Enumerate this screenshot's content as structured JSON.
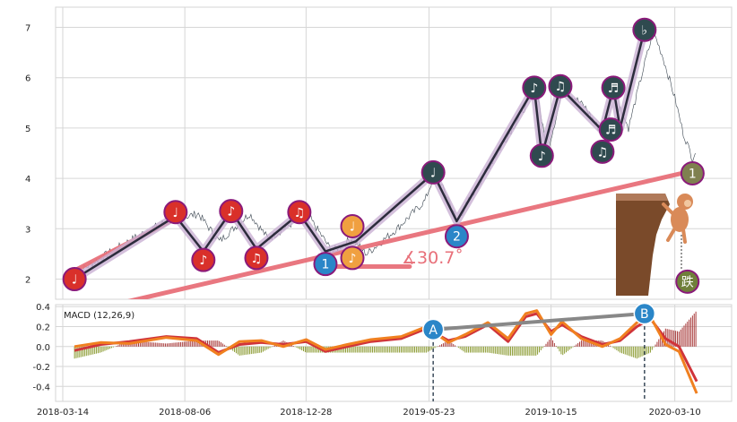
{
  "chart_data": [
    {
      "type": "line",
      "panel": "price",
      "ylim": [
        1.6,
        7.4
      ],
      "y_ticks": [
        "2",
        "3",
        "4",
        "5",
        "6",
        "7"
      ],
      "grid": true,
      "x_range": [
        "2018-03-14",
        "2020-04-06"
      ],
      "price_series": [
        {
          "x": "2018-03-28",
          "y": 2.1
        },
        {
          "x": "2018-05-01",
          "y": 2.45
        },
        {
          "x": "2018-06-05",
          "y": 2.8
        },
        {
          "x": "2018-07-15",
          "y": 3.15
        },
        {
          "x": "2018-08-22",
          "y": 3.3
        },
        {
          "x": "2018-09-16",
          "y": 2.75
        },
        {
          "x": "2018-10-22",
          "y": 3.3
        },
        {
          "x": "2018-11-13",
          "y": 2.8
        },
        {
          "x": "2018-12-29",
          "y": 3.3
        },
        {
          "x": "2019-01-28",
          "y": 2.55
        },
        {
          "x": "2019-02-20",
          "y": 2.8
        },
        {
          "x": "2019-03-10",
          "y": 2.5
        },
        {
          "x": "2019-04-15",
          "y": 3.0
        },
        {
          "x": "2019-05-18",
          "y": 3.55
        },
        {
          "x": "2019-05-30",
          "y": 4.1
        },
        {
          "x": "2019-06-15",
          "y": 3.6
        },
        {
          "x": "2019-06-25",
          "y": 3.15
        },
        {
          "x": "2019-07-25",
          "y": 4.0
        },
        {
          "x": "2019-08-30",
          "y": 5.0
        },
        {
          "x": "2019-09-28",
          "y": 5.8
        },
        {
          "x": "2019-10-10",
          "y": 4.5
        },
        {
          "x": "2019-10-30",
          "y": 5.8
        },
        {
          "x": "2019-11-25",
          "y": 5.4
        },
        {
          "x": "2019-12-18",
          "y": 4.8
        },
        {
          "x": "2020-01-05",
          "y": 5.4
        },
        {
          "x": "2020-01-15",
          "y": 5.0
        },
        {
          "x": "2020-02-05",
          "y": 6.4
        },
        {
          "x": "2020-02-14",
          "y": 6.9
        },
        {
          "x": "2020-02-25",
          "y": 6.4
        },
        {
          "x": "2020-03-10",
          "y": 5.6
        },
        {
          "x": "2020-03-20",
          "y": 4.9
        },
        {
          "x": "2020-03-31",
          "y": 4.4
        },
        {
          "x": "2020-04-05",
          "y": 4.6
        }
      ],
      "zigzag": [
        {
          "x": "2018-03-28",
          "y": 2.0
        },
        {
          "x": "2018-07-26",
          "y": 3.25
        },
        {
          "x": "2018-08-28",
          "y": 2.55
        },
        {
          "x": "2018-09-30",
          "y": 3.35
        },
        {
          "x": "2018-10-30",
          "y": 2.6
        },
        {
          "x": "2018-12-20",
          "y": 3.3
        },
        {
          "x": "2019-01-20",
          "y": 2.55
        },
        {
          "x": "2019-02-25",
          "y": 2.75
        },
        {
          "x": "2019-05-28",
          "y": 4.1
        },
        {
          "x": "2019-06-25",
          "y": 3.15
        },
        {
          "x": "2019-09-25",
          "y": 5.8
        },
        {
          "x": "2019-10-04",
          "y": 4.45
        },
        {
          "x": "2019-10-26",
          "y": 5.8
        },
        {
          "x": "2019-12-15",
          "y": 4.95
        },
        {
          "x": "2019-12-28",
          "y": 5.8
        },
        {
          "x": "2020-01-05",
          "y": 5.0
        },
        {
          "x": "2020-02-03",
          "y": 6.95
        }
      ],
      "trendlines": [
        {
          "from": {
            "x": "2018-03-20",
            "y": 2.1
          },
          "to": {
            "x": "2018-07-26",
            "y": 3.2
          }
        },
        {
          "from": {
            "x": "2018-04-20",
            "y": 1.4
          },
          "to": {
            "x": "2020-03-31",
            "y": 4.15
          }
        },
        {
          "from": {
            "x": "2019-01-20",
            "y": 2.25
          },
          "to": {
            "x": "2019-04-30",
            "y": 2.25
          }
        }
      ],
      "markers": [
        {
          "x": "2018-03-28",
          "y": 2.0,
          "glyph": "♩",
          "color": "#d9302a"
        },
        {
          "x": "2018-07-26",
          "y": 3.33,
          "glyph": "♩",
          "color": "#d9302a"
        },
        {
          "x": "2018-08-28",
          "y": 2.38,
          "glyph": "♪",
          "color": "#d9302a"
        },
        {
          "x": "2018-09-30",
          "y": 3.35,
          "glyph": "♪",
          "color": "#d9302a"
        },
        {
          "x": "2018-10-30",
          "y": 2.42,
          "glyph": "♫",
          "color": "#d9302a"
        },
        {
          "x": "2018-12-20",
          "y": 3.33,
          "glyph": "♫",
          "color": "#d9302a"
        },
        {
          "x": "2019-01-20",
          "y": 2.3,
          "glyph": "1",
          "color": "#2a86c8"
        },
        {
          "x": "2019-02-21",
          "y": 3.05,
          "glyph": "♩",
          "color": "#f0a040"
        },
        {
          "x": "2019-02-21",
          "y": 2.42,
          "glyph": "♪",
          "color": "#f0a040"
        },
        {
          "x": "2019-05-28",
          "y": 4.12,
          "glyph": "♩",
          "color": "#2f4a4f"
        },
        {
          "x": "2019-06-25",
          "y": 2.85,
          "glyph": "2",
          "color": "#2a86c8"
        },
        {
          "x": "2019-09-25",
          "y": 5.8,
          "glyph": "♪",
          "color": "#2f4a4f"
        },
        {
          "x": "2019-10-04",
          "y": 4.45,
          "glyph": "♪",
          "color": "#2f4a4f"
        },
        {
          "x": "2019-10-26",
          "y": 5.83,
          "glyph": "♫",
          "color": "#2f4a4f"
        },
        {
          "x": "2019-12-15",
          "y": 4.53,
          "glyph": "♫",
          "color": "#2f4a4f"
        },
        {
          "x": "2019-12-25",
          "y": 4.97,
          "glyph": "♬",
          "color": "#2f4a4f"
        },
        {
          "x": "2019-12-28",
          "y": 5.8,
          "glyph": "♬",
          "color": "#2f4a4f"
        },
        {
          "x": "2020-02-03",
          "y": 6.95,
          "glyph": "♭",
          "color": "#2f4a4f"
        },
        {
          "x": "2020-03-31",
          "y": 4.1,
          "glyph": "1",
          "color": "#7f8050"
        },
        {
          "x": "2020-03-25",
          "y": 1.95,
          "glyph": "跌",
          "color": "#6f7f3a"
        }
      ],
      "angle_label": "∡30.7˚",
      "angle_label_color": "#e8707a"
    },
    {
      "type": "line",
      "panel": "macd",
      "title": "MACD (12,26,9)",
      "ylim": [
        -0.55,
        0.42
      ],
      "y_ticks": [
        "0.4",
        "0.2",
        "0.0",
        "-0.2",
        "-0.4"
      ],
      "grid": true,
      "x_ticks": [
        "2018-03-14",
        "2018-08-06",
        "2018-12-28",
        "2019-05-23",
        "2019-10-15",
        "2020-03-10"
      ],
      "series": [
        {
          "color": "#d0343a",
          "values": [
            {
              "x": "2018-03-28",
              "y": -0.04
            },
            {
              "x": "2018-04-28",
              "y": 0.02
            },
            {
              "x": "2018-06-01",
              "y": 0.05
            },
            {
              "x": "2018-07-15",
              "y": 0.1
            },
            {
              "x": "2018-08-20",
              "y": 0.08
            },
            {
              "x": "2018-09-15",
              "y": -0.06
            },
            {
              "x": "2018-10-10",
              "y": 0.02
            },
            {
              "x": "2018-11-05",
              "y": 0.04
            },
            {
              "x": "2018-12-01",
              "y": 0.02
            },
            {
              "x": "2018-12-28",
              "y": 0.05
            },
            {
              "x": "2019-01-20",
              "y": -0.05
            },
            {
              "x": "2019-02-15",
              "y": 0.0
            },
            {
              "x": "2019-03-15",
              "y": 0.05
            },
            {
              "x": "2019-04-20",
              "y": 0.08
            },
            {
              "x": "2019-05-20",
              "y": 0.18
            },
            {
              "x": "2019-06-15",
              "y": 0.06
            },
            {
              "x": "2019-07-05",
              "y": 0.1
            },
            {
              "x": "2019-08-01",
              "y": 0.22
            },
            {
              "x": "2019-08-25",
              "y": 0.05
            },
            {
              "x": "2019-09-15",
              "y": 0.3
            },
            {
              "x": "2019-09-28",
              "y": 0.33
            },
            {
              "x": "2019-10-15",
              "y": 0.15
            },
            {
              "x": "2019-10-28",
              "y": 0.22
            },
            {
              "x": "2019-11-20",
              "y": 0.1
            },
            {
              "x": "2019-12-15",
              "y": 0.02
            },
            {
              "x": "2020-01-05",
              "y": 0.06
            },
            {
              "x": "2020-01-25",
              "y": 0.2
            },
            {
              "x": "2020-02-10",
              "y": 0.28
            },
            {
              "x": "2020-02-28",
              "y": 0.08
            },
            {
              "x": "2020-03-15",
              "y": 0.0
            },
            {
              "x": "2020-04-05",
              "y": -0.35
            }
          ]
        },
        {
          "color": "#f08020",
          "values": [
            {
              "x": "2018-03-28",
              "y": 0.0
            },
            {
              "x": "2018-04-28",
              "y": 0.04
            },
            {
              "x": "2018-06-01",
              "y": 0.03
            },
            {
              "x": "2018-07-15",
              "y": 0.09
            },
            {
              "x": "2018-08-20",
              "y": 0.06
            },
            {
              "x": "2018-09-15",
              "y": -0.08
            },
            {
              "x": "2018-10-10",
              "y": 0.05
            },
            {
              "x": "2018-11-05",
              "y": 0.06
            },
            {
              "x": "2018-12-01",
              "y": 0.0
            },
            {
              "x": "2018-12-28",
              "y": 0.07
            },
            {
              "x": "2019-01-20",
              "y": -0.03
            },
            {
              "x": "2019-02-15",
              "y": 0.02
            },
            {
              "x": "2019-03-15",
              "y": 0.07
            },
            {
              "x": "2019-04-20",
              "y": 0.1
            },
            {
              "x": "2019-05-20",
              "y": 0.2
            },
            {
              "x": "2019-06-15",
              "y": 0.04
            },
            {
              "x": "2019-07-05",
              "y": 0.12
            },
            {
              "x": "2019-08-01",
              "y": 0.24
            },
            {
              "x": "2019-08-25",
              "y": 0.08
            },
            {
              "x": "2019-09-15",
              "y": 0.33
            },
            {
              "x": "2019-09-28",
              "y": 0.36
            },
            {
              "x": "2019-10-15",
              "y": 0.12
            },
            {
              "x": "2019-10-28",
              "y": 0.25
            },
            {
              "x": "2019-11-20",
              "y": 0.08
            },
            {
              "x": "2019-12-15",
              "y": 0.0
            },
            {
              "x": "2020-01-05",
              "y": 0.08
            },
            {
              "x": "2020-01-25",
              "y": 0.24
            },
            {
              "x": "2020-02-10",
              "y": 0.3
            },
            {
              "x": "2020-02-28",
              "y": 0.02
            },
            {
              "x": "2020-03-15",
              "y": -0.05
            },
            {
              "x": "2020-04-05",
              "y": -0.47
            }
          ]
        }
      ],
      "connector": {
        "from": {
          "x": "2019-05-28",
          "y": 0.17
        },
        "to": {
          "x": "2020-02-03",
          "y": 0.33
        }
      },
      "signals": [
        {
          "label": "A",
          "x": "2019-05-28",
          "y": 0.17
        },
        {
          "label": "B",
          "x": "2020-02-03",
          "y": 0.33
        }
      ]
    }
  ]
}
